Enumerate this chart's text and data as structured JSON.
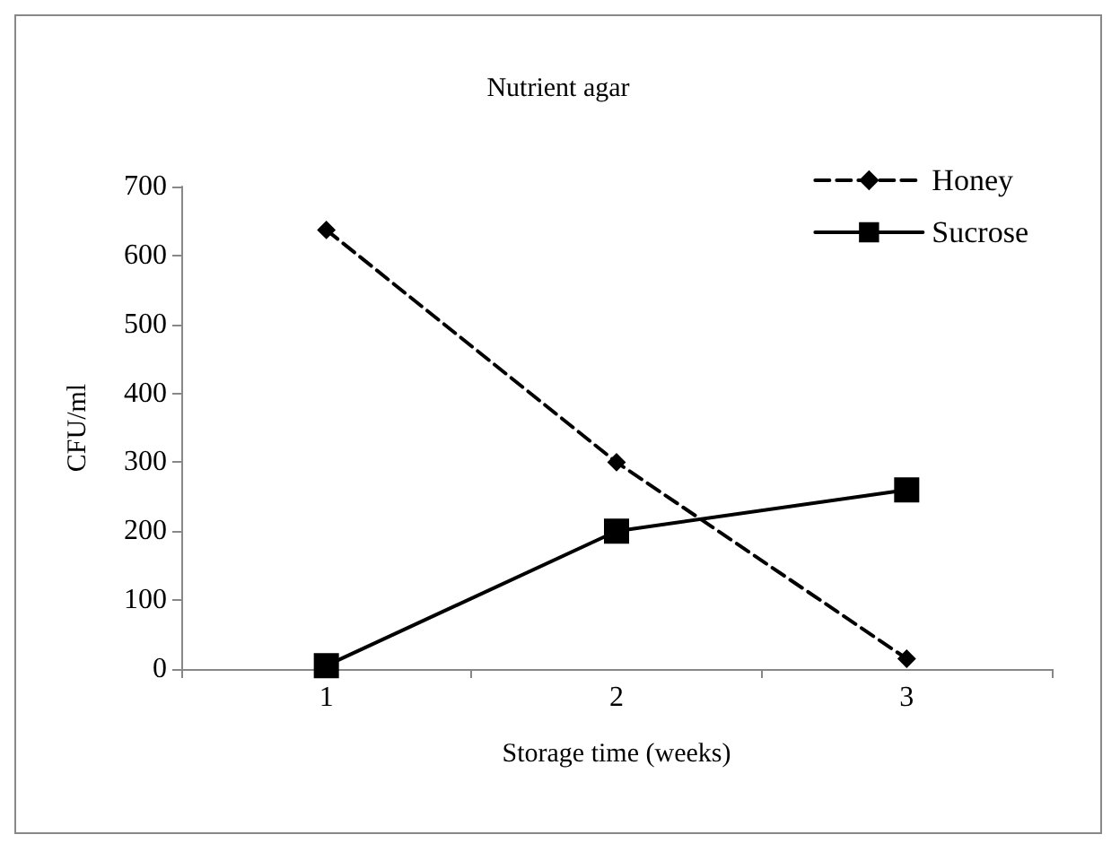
{
  "chart_data": {
    "type": "line",
    "title": "Nutrient agar",
    "xlabel": "Storage time (weeks)",
    "ylabel": "CFU/ml",
    "categories": [
      "1",
      "2",
      "3"
    ],
    "series": [
      {
        "name": "Honey",
        "color": "#000000",
        "values": [
          637,
          300,
          15
        ],
        "marker": "diamond",
        "line_style": "dashed"
      },
      {
        "name": "Sucrose",
        "color": "#000000",
        "values": [
          5,
          200,
          260
        ],
        "marker": "square",
        "line_style": "solid"
      }
    ],
    "ylim": [
      0,
      700
    ],
    "yticks": [
      0,
      100,
      200,
      300,
      400,
      500,
      600,
      700
    ],
    "grid": false,
    "legend": "top right"
  }
}
